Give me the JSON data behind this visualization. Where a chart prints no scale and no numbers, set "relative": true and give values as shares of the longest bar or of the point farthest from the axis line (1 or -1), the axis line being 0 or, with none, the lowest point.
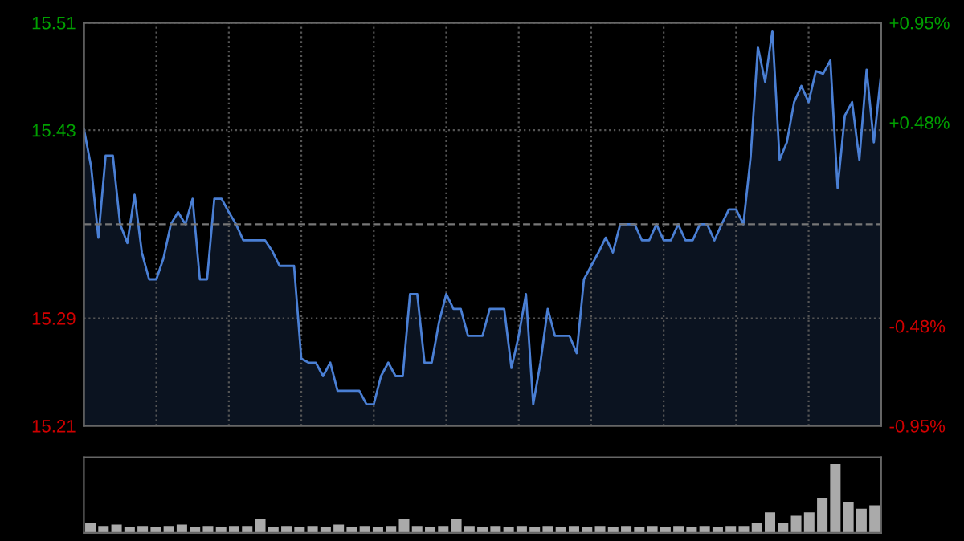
{
  "chart_data": [
    {
      "type": "area",
      "categories": [
        null,
        null,
        null,
        null,
        null,
        null,
        null,
        null,
        null,
        null,
        null,
        null,
        null,
        null,
        null,
        null,
        null,
        null,
        null,
        null,
        null,
        null,
        null,
        null,
        null,
        null,
        null,
        null,
        null,
        null,
        null,
        null,
        null,
        null,
        null,
        null,
        null,
        null,
        null,
        null,
        null,
        null,
        null,
        null,
        null,
        null,
        null,
        null,
        null,
        null,
        null,
        null,
        null,
        null,
        null,
        null,
        null,
        null,
        null,
        null,
        null,
        null,
        null,
        null,
        null,
        null,
        null,
        null,
        null,
        null,
        null,
        null,
        null,
        null,
        null,
        null,
        null,
        null,
        null,
        null,
        null,
        null,
        null,
        null,
        null,
        null,
        null,
        null,
        null,
        null,
        null,
        null,
        null,
        null,
        null,
        null,
        null,
        null,
        null,
        null,
        null,
        null,
        null,
        null,
        null,
        null,
        null,
        null,
        null,
        null,
        null
      ],
      "series": [
        {
          "color": "#4a7fd4",
          "values": [
            15.431,
            15.403,
            15.35,
            15.411,
            15.411,
            15.36,
            15.346,
            15.382,
            15.339,
            15.319,
            15.319,
            15.335,
            15.36,
            15.369,
            15.36,
            15.379,
            15.319,
            15.319,
            15.379,
            15.379,
            15.369,
            15.36,
            15.348,
            15.348,
            15.348,
            15.348,
            15.34,
            15.329,
            15.329,
            15.329,
            15.26,
            15.257,
            15.257,
            15.247,
            15.257,
            15.236,
            15.236,
            15.236,
            15.236,
            15.226,
            15.226,
            15.247,
            15.257,
            15.247,
            15.247,
            15.308,
            15.308,
            15.257,
            15.257,
            15.287,
            15.308,
            15.297,
            15.297,
            15.277,
            15.277,
            15.277,
            15.297,
            15.297,
            15.297,
            15.253,
            15.277,
            15.308,
            15.226,
            15.257,
            15.297,
            15.277,
            15.277,
            15.277,
            15.264,
            15.319,
            15.329,
            15.339,
            15.35,
            15.339,
            15.36,
            15.36,
            15.36,
            15.348,
            15.348,
            15.36,
            15.348,
            15.348,
            15.36,
            15.348,
            15.348,
            15.36,
            15.36,
            15.348,
            15.36,
            15.371,
            15.371,
            15.36,
            15.41,
            15.492,
            15.466,
            15.504,
            15.408,
            15.421,
            15.451,
            15.463,
            15.451,
            15.474,
            15.472,
            15.482,
            15.387,
            15.441,
            15.451,
            15.408,
            15.475,
            15.421,
            15.472
          ]
        }
      ],
      "ylim": [
        15.21,
        15.51
      ],
      "yticks": [
        15.21,
        15.29,
        15.43,
        15.51
      ],
      "y2lim": [
        -0.95,
        0.95
      ],
      "y2ticks": [
        {
          "value": -0.95,
          "label": "-0.95%"
        },
        {
          "value": -0.48,
          "label": "-0.48%"
        },
        {
          "value": 0.48,
          "label": "+0.48%"
        },
        {
          "value": 0.95,
          "label": "+0.95%"
        }
      ],
      "ref_lines": [
        {
          "axis": "y",
          "value": 15.36,
          "color": "#777777",
          "line_style": "dashed"
        }
      ],
      "grid": true
    },
    {
      "type": "bar",
      "relative": true,
      "color": "#aaaaaa",
      "categories": [
        null,
        null,
        null,
        null,
        null,
        null,
        null,
        null,
        null,
        null,
        null,
        null,
        null,
        null,
        null,
        null,
        null,
        null,
        null,
        null,
        null,
        null,
        null,
        null,
        null,
        null,
        null,
        null,
        null,
        null,
        null,
        null,
        null,
        null,
        null,
        null,
        null,
        null,
        null,
        null,
        null,
        null,
        null,
        null,
        null,
        null,
        null,
        null,
        null,
        null,
        null,
        null,
        null,
        null,
        null,
        null,
        null,
        null,
        null,
        null,
        null
      ],
      "values": [
        0.15,
        0.1,
        0.12,
        0.08,
        0.1,
        0.08,
        0.1,
        0.12,
        0.08,
        0.1,
        0.08,
        0.1,
        0.1,
        0.2,
        0.08,
        0.1,
        0.08,
        0.1,
        0.08,
        0.12,
        0.08,
        0.1,
        0.08,
        0.1,
        0.2,
        0.1,
        0.08,
        0.1,
        0.2,
        0.1,
        0.08,
        0.1,
        0.08,
        0.1,
        0.08,
        0.1,
        0.08,
        0.1,
        0.08,
        0.1,
        0.08,
        0.1,
        0.08,
        0.1,
        0.08,
        0.1,
        0.08,
        0.1,
        0.08,
        0.1,
        0.1,
        0.15,
        0.3,
        0.15,
        0.25,
        0.3,
        0.5,
        1.0,
        0.45,
        0.35,
        0.4
      ]
    }
  ]
}
